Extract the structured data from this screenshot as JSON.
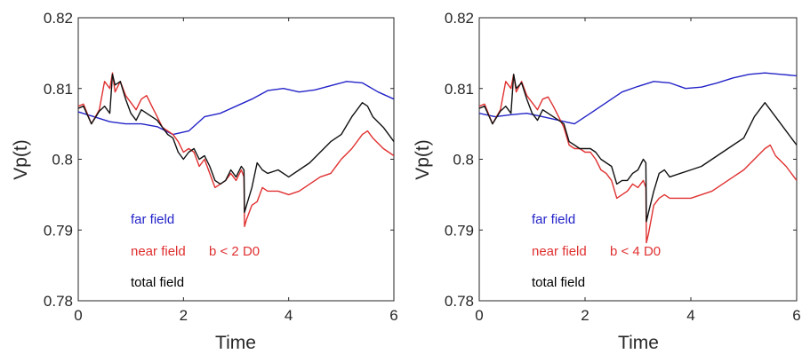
{
  "chart_data": [
    {
      "type": "line",
      "xlabel": "Time",
      "ylabel": "Vp(t)",
      "xlim": [
        0,
        6
      ],
      "ylim": [
        0.78,
        0.82
      ],
      "xticks": [
        "0",
        "2",
        "4",
        "6"
      ],
      "yticks": [
        "0.78",
        "0.79",
        "0.8",
        "0.81",
        "0.82"
      ],
      "grid": false,
      "annotations": [
        {
          "text": "far field",
          "color": "#2323c8"
        },
        {
          "text": "near field",
          "color": "#e03030"
        },
        {
          "text": "b < 2 D0",
          "color": "#e03030"
        },
        {
          "text": "total field",
          "color": "#000000"
        }
      ],
      "series": [
        {
          "name": "far field",
          "color": "#2323c8",
          "x": [
            0,
            0.3,
            0.6,
            0.9,
            1.2,
            1.5,
            1.8,
            2.1,
            2.4,
            2.7,
            3.0,
            3.3,
            3.6,
            3.9,
            4.2,
            4.5,
            4.8,
            5.1,
            5.4,
            5.7,
            6.0
          ],
          "y": [
            0.8067,
            0.806,
            0.8053,
            0.805,
            0.805,
            0.8046,
            0.8035,
            0.804,
            0.806,
            0.8065,
            0.8075,
            0.8085,
            0.8097,
            0.81,
            0.8095,
            0.8098,
            0.8104,
            0.811,
            0.8108,
            0.8095,
            0.8085
          ]
        },
        {
          "name": "near field",
          "color": "#e03030",
          "x": [
            0,
            0.1,
            0.25,
            0.4,
            0.5,
            0.6,
            0.65,
            0.7,
            0.8,
            0.9,
            1.0,
            1.1,
            1.2,
            1.3,
            1.4,
            1.5,
            1.6,
            1.7,
            1.8,
            1.9,
            2.0,
            2.1,
            2.2,
            2.3,
            2.4,
            2.5,
            2.6,
            2.7,
            2.8,
            2.9,
            3.0,
            3.1,
            3.15,
            3.16,
            3.2,
            3.3,
            3.4,
            3.5,
            3.6,
            3.8,
            4.0,
            4.2,
            4.4,
            4.6,
            4.8,
            5.0,
            5.2,
            5.4,
            5.5,
            5.6,
            5.8,
            6.0
          ],
          "y": [
            0.8075,
            0.8078,
            0.805,
            0.807,
            0.811,
            0.81,
            0.8122,
            0.8095,
            0.811,
            0.809,
            0.808,
            0.807,
            0.8085,
            0.809,
            0.8075,
            0.806,
            0.8045,
            0.804,
            0.8035,
            0.8025,
            0.801,
            0.8015,
            0.801,
            0.799,
            0.8,
            0.798,
            0.796,
            0.7965,
            0.797,
            0.798,
            0.797,
            0.7985,
            0.7975,
            0.7905,
            0.7915,
            0.7935,
            0.794,
            0.796,
            0.7955,
            0.7955,
            0.795,
            0.7955,
            0.7965,
            0.7975,
            0.798,
            0.8,
            0.8015,
            0.8035,
            0.804,
            0.803,
            0.8015,
            0.8005
          ]
        },
        {
          "name": "total field",
          "color": "#111111",
          "x": [
            0,
            0.1,
            0.25,
            0.4,
            0.5,
            0.6,
            0.65,
            0.7,
            0.8,
            0.9,
            1.0,
            1.1,
            1.2,
            1.3,
            1.4,
            1.5,
            1.6,
            1.7,
            1.8,
            1.9,
            2.0,
            2.1,
            2.2,
            2.3,
            2.4,
            2.5,
            2.6,
            2.7,
            2.8,
            2.9,
            3.0,
            3.1,
            3.15,
            3.16,
            3.2,
            3.3,
            3.4,
            3.5,
            3.6,
            3.8,
            4.0,
            4.2,
            4.4,
            4.6,
            4.8,
            5.0,
            5.2,
            5.4,
            5.5,
            5.6,
            5.8,
            6.0
          ],
          "y": [
            0.8072,
            0.8075,
            0.805,
            0.8068,
            0.8075,
            0.8065,
            0.812,
            0.8105,
            0.811,
            0.8085,
            0.8065,
            0.8055,
            0.807,
            0.8065,
            0.806,
            0.8055,
            0.8045,
            0.8035,
            0.803,
            0.801,
            0.8,
            0.801,
            0.8015,
            0.8,
            0.8005,
            0.799,
            0.797,
            0.7965,
            0.797,
            0.7985,
            0.7975,
            0.799,
            0.7985,
            0.7925,
            0.7935,
            0.796,
            0.7995,
            0.7985,
            0.798,
            0.7985,
            0.7975,
            0.7985,
            0.7995,
            0.801,
            0.8025,
            0.8035,
            0.806,
            0.808,
            0.8075,
            0.806,
            0.8045,
            0.8025
          ]
        }
      ]
    },
    {
      "type": "line",
      "xlabel": "Time",
      "ylabel": "Vp(t)",
      "xlim": [
        0,
        6
      ],
      "ylim": [
        0.78,
        0.82
      ],
      "xticks": [
        "0",
        "2",
        "4",
        "6"
      ],
      "yticks": [
        "0.78",
        "0.79",
        "0.8",
        "0.81",
        "0.82"
      ],
      "grid": false,
      "annotations": [
        {
          "text": "far field",
          "color": "#2323c8"
        },
        {
          "text": "near field",
          "color": "#e03030"
        },
        {
          "text": "b < 4 D0",
          "color": "#e03030"
        },
        {
          "text": "total field",
          "color": "#000000"
        }
      ],
      "series": [
        {
          "name": "far field",
          "color": "#2323c8",
          "x": [
            0,
            0.3,
            0.6,
            0.9,
            1.2,
            1.5,
            1.8,
            2.1,
            2.4,
            2.7,
            3.0,
            3.3,
            3.6,
            3.9,
            4.2,
            4.5,
            4.8,
            5.1,
            5.4,
            5.7,
            6.0
          ],
          "y": [
            0.8065,
            0.806,
            0.8063,
            0.8065,
            0.806,
            0.8055,
            0.805,
            0.8065,
            0.808,
            0.8095,
            0.8103,
            0.811,
            0.8108,
            0.81,
            0.8102,
            0.8108,
            0.8115,
            0.812,
            0.8122,
            0.812,
            0.8118
          ]
        },
        {
          "name": "near field",
          "color": "#e03030",
          "x": [
            0,
            0.1,
            0.25,
            0.4,
            0.5,
            0.6,
            0.65,
            0.7,
            0.8,
            0.9,
            1.0,
            1.1,
            1.2,
            1.3,
            1.4,
            1.5,
            1.6,
            1.7,
            1.8,
            1.9,
            2.0,
            2.1,
            2.2,
            2.3,
            2.4,
            2.5,
            2.6,
            2.7,
            2.8,
            2.9,
            3.0,
            3.1,
            3.15,
            3.16,
            3.2,
            3.3,
            3.4,
            3.5,
            3.6,
            3.8,
            4.0,
            4.2,
            4.4,
            4.6,
            4.8,
            5.0,
            5.2,
            5.4,
            5.5,
            5.6,
            5.8,
            6.0
          ],
          "y": [
            0.8075,
            0.8078,
            0.805,
            0.807,
            0.811,
            0.81,
            0.812,
            0.8095,
            0.811,
            0.809,
            0.808,
            0.807,
            0.8085,
            0.8088,
            0.8075,
            0.806,
            0.8045,
            0.802,
            0.8015,
            0.8015,
            0.801,
            0.801,
            0.8,
            0.7985,
            0.798,
            0.797,
            0.7945,
            0.795,
            0.7955,
            0.7965,
            0.796,
            0.797,
            0.796,
            0.7882,
            0.7895,
            0.7935,
            0.7945,
            0.795,
            0.7945,
            0.7945,
            0.7945,
            0.795,
            0.7955,
            0.7965,
            0.7975,
            0.7985,
            0.8,
            0.8015,
            0.802,
            0.8005,
            0.799,
            0.797
          ]
        },
        {
          "name": "total field",
          "color": "#111111",
          "x": [
            0,
            0.1,
            0.25,
            0.4,
            0.5,
            0.6,
            0.65,
            0.7,
            0.8,
            0.9,
            1.0,
            1.1,
            1.2,
            1.3,
            1.4,
            1.5,
            1.6,
            1.7,
            1.8,
            1.9,
            2.0,
            2.1,
            2.2,
            2.3,
            2.4,
            2.5,
            2.6,
            2.7,
            2.8,
            2.9,
            3.0,
            3.1,
            3.15,
            3.16,
            3.2,
            3.3,
            3.4,
            3.5,
            3.6,
            3.8,
            4.0,
            4.2,
            4.4,
            4.6,
            4.8,
            5.0,
            5.2,
            5.4,
            5.5,
            5.6,
            5.8,
            6.0
          ],
          "y": [
            0.8072,
            0.8075,
            0.805,
            0.8068,
            0.8075,
            0.8065,
            0.812,
            0.81,
            0.8108,
            0.8085,
            0.8065,
            0.8055,
            0.807,
            0.8065,
            0.806,
            0.8055,
            0.805,
            0.8025,
            0.802,
            0.8015,
            0.8015,
            0.8015,
            0.801,
            0.8,
            0.7995,
            0.799,
            0.7965,
            0.797,
            0.797,
            0.798,
            0.7985,
            0.8,
            0.7995,
            0.7912,
            0.7925,
            0.7955,
            0.798,
            0.7985,
            0.7975,
            0.798,
            0.7985,
            0.799,
            0.8,
            0.801,
            0.802,
            0.803,
            0.806,
            0.808,
            0.807,
            0.806,
            0.804,
            0.802
          ]
        }
      ]
    }
  ]
}
